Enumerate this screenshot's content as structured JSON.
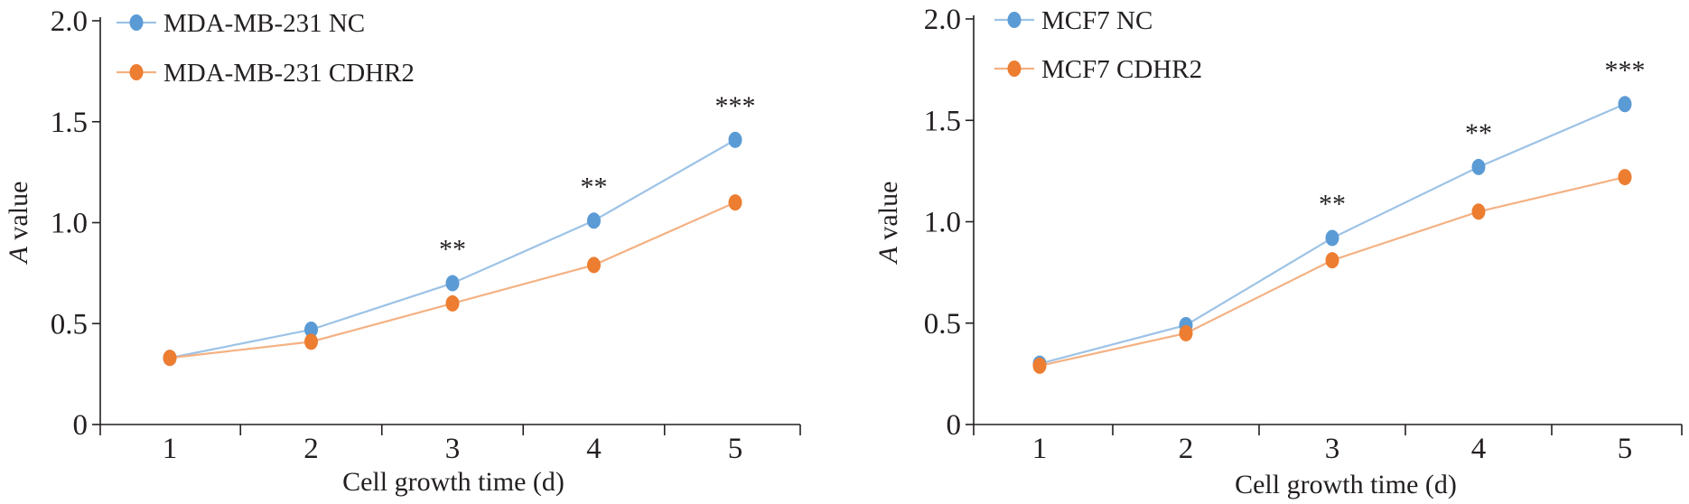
{
  "figure": {
    "panels": 2
  },
  "chart_data": [
    {
      "type": "line",
      "title": "",
      "xlabel": "Cell growth time (d)",
      "ylabel_italic": "A",
      "ylabel_rest": " value",
      "x": [
        1,
        2,
        3,
        4,
        5
      ],
      "x_tick_labels": [
        "1",
        "2",
        "3",
        "4",
        "5"
      ],
      "ylim": [
        0,
        2.0
      ],
      "y_ticks": [
        0,
        0.5,
        1.0,
        1.5,
        2.0
      ],
      "y_tick_labels": [
        "0",
        "0.5",
        "1.0",
        "1.5",
        "2.0"
      ],
      "grid": false,
      "legend_position": "top-left",
      "series": [
        {
          "name": "MDA-MB-231 NC",
          "color": "#5b9bd5",
          "line_color": "#9dc3e6",
          "values": [
            0.33,
            0.47,
            0.7,
            1.01,
            1.41
          ]
        },
        {
          "name": "MDA-MB-231 CDHR2",
          "color": "#ed7d31",
          "line_color": "#f4b183",
          "values": [
            0.33,
            0.41,
            0.6,
            0.79,
            1.1
          ]
        }
      ],
      "annotations": [
        {
          "x": 3,
          "text": "**"
        },
        {
          "x": 4,
          "text": "**"
        },
        {
          "x": 5,
          "text": "***"
        }
      ]
    },
    {
      "type": "line",
      "title": "",
      "xlabel": "Cell growth time (d)",
      "ylabel_italic": "A",
      "ylabel_rest": " value",
      "x": [
        1,
        2,
        3,
        4,
        5
      ],
      "x_tick_labels": [
        "1",
        "2",
        "3",
        "4",
        "5"
      ],
      "ylim": [
        0,
        2.0
      ],
      "y_ticks": [
        0,
        0.5,
        1.0,
        1.5,
        2.0
      ],
      "y_tick_labels": [
        "0",
        "0.5",
        "1.0",
        "1.5",
        "2.0"
      ],
      "grid": false,
      "legend_position": "top-left",
      "series": [
        {
          "name": "MCF7 NC",
          "color": "#5b9bd5",
          "line_color": "#9dc3e6",
          "values": [
            0.3,
            0.49,
            0.92,
            1.27,
            1.58
          ]
        },
        {
          "name": "MCF7 CDHR2",
          "color": "#ed7d31",
          "line_color": "#f4b183",
          "values": [
            0.29,
            0.45,
            0.81,
            1.05,
            1.22
          ]
        }
      ],
      "annotations": [
        {
          "x": 3,
          "text": "**"
        },
        {
          "x": 4,
          "text": "**"
        },
        {
          "x": 5,
          "text": "***"
        }
      ]
    }
  ]
}
